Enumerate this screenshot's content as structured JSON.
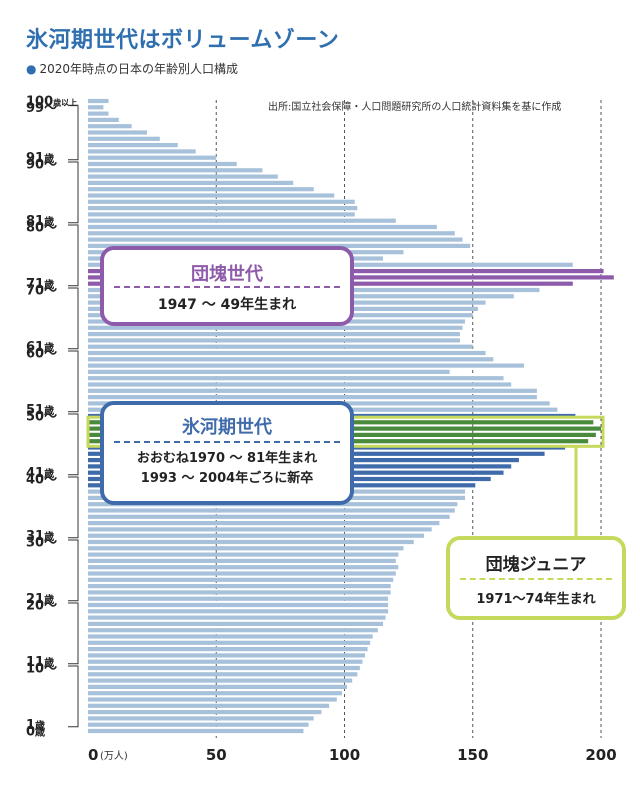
{
  "title": "氷河期世代はボリュームゾーン",
  "subtitle": "2020年時点の日本の年齢別人口構成",
  "source": "出所:国立社会保障・人口問題研究所の人口統計資料集を基に作成",
  "boxes": {
    "dankai": {
      "head": "団塊世代",
      "body": "1947 ～ 49年生まれ"
    },
    "hyoga": {
      "head": "氷河期世代",
      "body1": "おおむね1970 ～ 81年生まれ",
      "body2": "1993 ～ 2004年ごろに新卒"
    },
    "junior": {
      "head": "団塊ジュニア",
      "body": "1971～74年生まれ"
    }
  },
  "colors": {
    "base": "#a7c1db",
    "dankai": "#8e5bab",
    "hyoga": "#3f6bab",
    "junior": "#4a8a3c",
    "junior_frame": "#c6d95c"
  },
  "chart_data": {
    "type": "bar",
    "orientation": "horizontal",
    "title": "氷河期世代はボリュームゾーン",
    "subtitle": "2020年時点の日本の年齢別人口構成",
    "x_unit": "(万人)",
    "xlim": [
      0,
      200
    ],
    "x_ticks": [
      "0",
      "50",
      "100",
      "150",
      "200"
    ],
    "ages": [
      100,
      99,
      98,
      97,
      96,
      95,
      94,
      93,
      92,
      91,
      90,
      89,
      88,
      87,
      86,
      85,
      84,
      83,
      82,
      81,
      80,
      79,
      78,
      77,
      76,
      75,
      74,
      73,
      72,
      71,
      70,
      69,
      68,
      67,
      66,
      65,
      64,
      63,
      62,
      61,
      60,
      59,
      58,
      57,
      56,
      55,
      54,
      53,
      52,
      51,
      50,
      49,
      48,
      47,
      46,
      45,
      44,
      43,
      42,
      41,
      40,
      39,
      38,
      37,
      36,
      35,
      34,
      33,
      32,
      31,
      30,
      29,
      28,
      27,
      26,
      25,
      24,
      23,
      22,
      21,
      20,
      19,
      18,
      17,
      16,
      15,
      14,
      13,
      12,
      11,
      10,
      9,
      8,
      7,
      6,
      5,
      4,
      3,
      2,
      1,
      0
    ],
    "values": [
      8,
      6,
      8,
      12,
      17,
      23,
      28,
      35,
      42,
      50,
      58,
      68,
      74,
      80,
      88,
      96,
      104,
      105,
      104,
      120,
      136,
      143,
      146,
      149,
      123,
      115,
      189,
      201,
      205,
      189,
      176,
      166,
      155,
      152,
      150,
      147,
      146,
      145,
      145,
      150,
      155,
      158,
      170,
      141,
      162,
      165,
      175,
      175,
      180,
      183,
      190,
      197,
      200,
      198,
      195,
      186,
      178,
      168,
      165,
      162,
      157,
      151,
      147,
      147,
      144,
      143,
      141,
      137,
      134,
      131,
      127,
      123,
      121,
      120,
      121,
      120,
      119,
      118,
      118,
      117,
      117,
      117,
      116,
      115,
      113,
      111,
      110,
      109,
      108,
      107,
      106,
      105,
      103,
      101,
      99,
      97,
      94,
      91,
      88,
      86,
      84
    ],
    "y_tick_labels": [
      {
        "age": 100,
        "label": "100",
        "suffix": "歳以上"
      },
      {
        "age": 99,
        "label": "99～"
      },
      {
        "age": 91,
        "label": "91",
        "suffix": "歳"
      },
      {
        "age": 90,
        "label": "90～"
      },
      {
        "age": 81,
        "label": "81",
        "suffix": "歳"
      },
      {
        "age": 80,
        "label": "80～"
      },
      {
        "age": 71,
        "label": "71",
        "suffix": "歳"
      },
      {
        "age": 70,
        "label": "70～"
      },
      {
        "age": 61,
        "label": "61",
        "suffix": "歳"
      },
      {
        "age": 60,
        "label": "60～"
      },
      {
        "age": 51,
        "label": "51",
        "suffix": "歳"
      },
      {
        "age": 50,
        "label": "50～"
      },
      {
        "age": 41,
        "label": "41",
        "suffix": "歳"
      },
      {
        "age": 40,
        "label": "40～"
      },
      {
        "age": 31,
        "label": "31",
        "suffix": "歳"
      },
      {
        "age": 30,
        "label": "30～"
      },
      {
        "age": 21,
        "label": "21",
        "suffix": "歳"
      },
      {
        "age": 20,
        "label": "20～"
      },
      {
        "age": 11,
        "label": "11",
        "suffix": "歳"
      },
      {
        "age": 10,
        "label": "10～"
      },
      {
        "age": 1,
        "label": "1",
        "suffix": "歳"
      },
      {
        "age": 0,
        "label": "0",
        "suffix": "歳"
      }
    ],
    "groups": [
      {
        "key": "dankai",
        "age_from": 71,
        "age_to": 73
      },
      {
        "key": "hyoga",
        "age_from": 39,
        "age_to": 50
      },
      {
        "key": "junior",
        "age_from": 46,
        "age_to": 49
      }
    ],
    "grid": "vertical dashed"
  }
}
